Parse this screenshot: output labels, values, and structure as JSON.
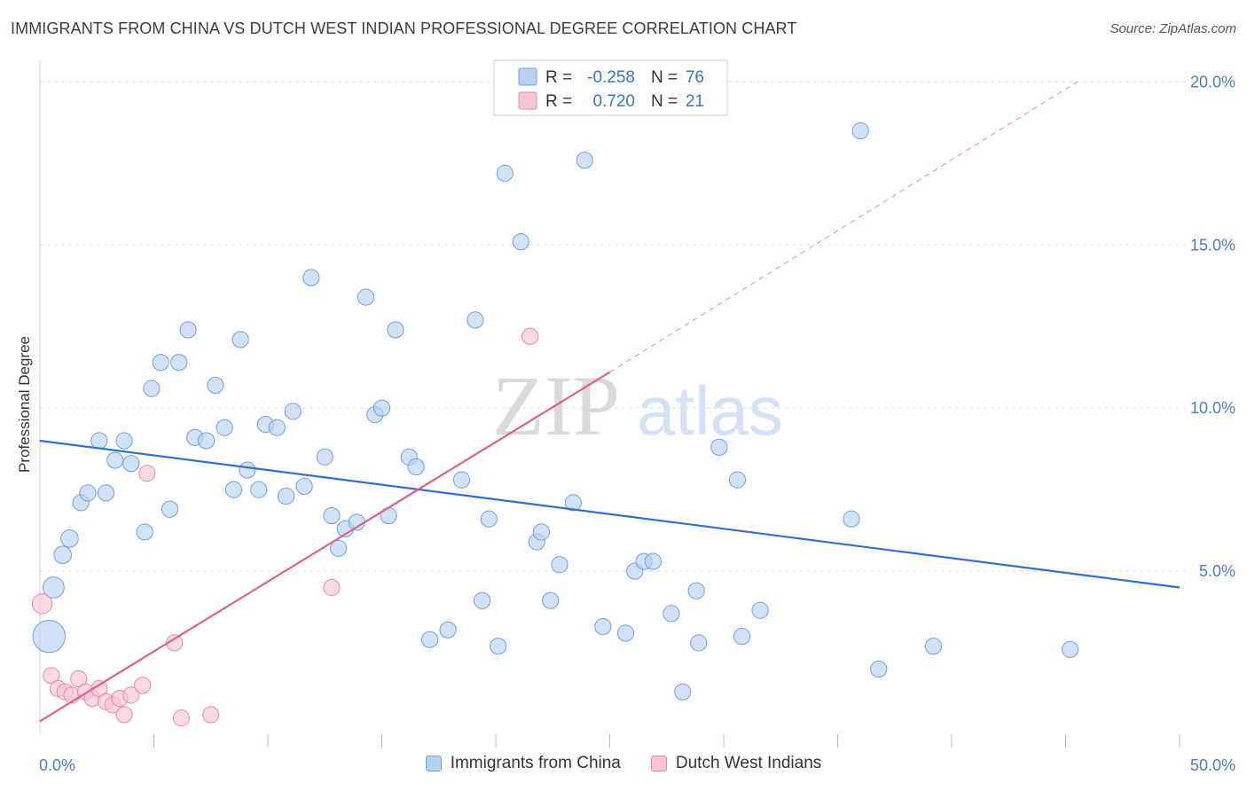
{
  "header": {
    "title": "IMMIGRANTS FROM CHINA VS DUTCH WEST INDIAN PROFESSIONAL DEGREE CORRELATION CHART",
    "source": "Source: ZipAtlas.com"
  },
  "watermark": {
    "zip": "ZIP",
    "atlas": "atlas"
  },
  "colors": {
    "blue_fill": "#b8d1f3",
    "blue_stroke": "#6f9fe0",
    "blue_line": "#2f6fd1",
    "pink_fill": "#f7c4d3",
    "pink_stroke": "#e889a6",
    "pink_line": "#e0608c",
    "grid": "#dddddd",
    "tick_text": "#4a7cc9"
  },
  "legend": {
    "rows": [
      {
        "r_label": "R =",
        "r_value": "-0.258",
        "n_label": "N =",
        "n_value": "76"
      },
      {
        "r_label": "R =",
        "r_value": "0.720",
        "n_label": "N =",
        "n_value": "21"
      }
    ]
  },
  "bottom_legend": [
    {
      "label": "Immigrants from China"
    },
    {
      "label": "Dutch West Indians"
    }
  ],
  "chart_data": {
    "type": "scatter",
    "title": "IMMIGRANTS FROM CHINA VS DUTCH WEST INDIAN PROFESSIONAL DEGREE CORRELATION CHART",
    "xlabel": "",
    "ylabel": "Professional Degree",
    "xlim": [
      0,
      50
    ],
    "ylim": [
      0,
      20.5
    ],
    "x_tick_labels": [
      "0.0%",
      "50.0%"
    ],
    "y_ticks": [
      5,
      10,
      15,
      20
    ],
    "y_tick_labels": [
      "5.0%",
      "10.0%",
      "15.0%",
      "20.0%"
    ],
    "grid": true,
    "legend_position": "top-center",
    "series": [
      {
        "name": "Immigrants from China",
        "r": -0.258,
        "n": 76,
        "trend": {
          "x": [
            0,
            50
          ],
          "y": [
            9.0,
            4.5
          ],
          "dashed_after": null
        },
        "points": [
          {
            "x": 0.4,
            "y": 3.0,
            "s": 2.6
          },
          {
            "x": 0.6,
            "y": 4.5,
            "s": 1.7
          },
          {
            "x": 1.0,
            "y": 5.5,
            "s": 1.4
          },
          {
            "x": 1.3,
            "y": 6.0,
            "s": 1.4
          },
          {
            "x": 1.8,
            "y": 7.1,
            "s": 1.3
          },
          {
            "x": 2.1,
            "y": 7.4,
            "s": 1.3
          },
          {
            "x": 2.6,
            "y": 9.0,
            "s": 1.3
          },
          {
            "x": 2.9,
            "y": 7.4,
            "s": 1.3
          },
          {
            "x": 3.3,
            "y": 8.4,
            "s": 1.3
          },
          {
            "x": 3.7,
            "y": 9.0,
            "s": 1.3
          },
          {
            "x": 4.0,
            "y": 8.3,
            "s": 1.3
          },
          {
            "x": 4.6,
            "y": 6.2,
            "s": 1.3
          },
          {
            "x": 4.9,
            "y": 10.6,
            "s": 1.3
          },
          {
            "x": 5.3,
            "y": 11.4,
            "s": 1.3
          },
          {
            "x": 5.7,
            "y": 6.9,
            "s": 1.3
          },
          {
            "x": 6.1,
            "y": 11.4,
            "s": 1.3
          },
          {
            "x": 6.5,
            "y": 12.4,
            "s": 1.3
          },
          {
            "x": 6.8,
            "y": 9.1,
            "s": 1.3
          },
          {
            "x": 7.3,
            "y": 9.0,
            "s": 1.3
          },
          {
            "x": 7.7,
            "y": 10.7,
            "s": 1.3
          },
          {
            "x": 8.1,
            "y": 9.4,
            "s": 1.3
          },
          {
            "x": 8.5,
            "y": 7.5,
            "s": 1.3
          },
          {
            "x": 8.8,
            "y": 12.1,
            "s": 1.3
          },
          {
            "x": 9.1,
            "y": 8.1,
            "s": 1.3
          },
          {
            "x": 9.6,
            "y": 7.5,
            "s": 1.3
          },
          {
            "x": 9.9,
            "y": 9.5,
            "s": 1.3
          },
          {
            "x": 10.4,
            "y": 9.4,
            "s": 1.3
          },
          {
            "x": 10.8,
            "y": 7.3,
            "s": 1.3
          },
          {
            "x": 11.1,
            "y": 9.9,
            "s": 1.3
          },
          {
            "x": 11.6,
            "y": 7.6,
            "s": 1.3
          },
          {
            "x": 11.9,
            "y": 14.0,
            "s": 1.3
          },
          {
            "x": 12.5,
            "y": 8.5,
            "s": 1.3
          },
          {
            "x": 12.8,
            "y": 6.7,
            "s": 1.3
          },
          {
            "x": 13.1,
            "y": 5.7,
            "s": 1.3
          },
          {
            "x": 13.4,
            "y": 6.3,
            "s": 1.3
          },
          {
            "x": 13.9,
            "y": 6.5,
            "s": 1.3
          },
          {
            "x": 14.3,
            "y": 13.4,
            "s": 1.3
          },
          {
            "x": 14.7,
            "y": 9.8,
            "s": 1.3
          },
          {
            "x": 15.0,
            "y": 10.0,
            "s": 1.3
          },
          {
            "x": 15.3,
            "y": 6.7,
            "s": 1.3
          },
          {
            "x": 15.6,
            "y": 12.4,
            "s": 1.3
          },
          {
            "x": 16.2,
            "y": 8.5,
            "s": 1.3
          },
          {
            "x": 16.5,
            "y": 8.2,
            "s": 1.3
          },
          {
            "x": 17.1,
            "y": 2.9,
            "s": 1.3
          },
          {
            "x": 17.9,
            "y": 3.2,
            "s": 1.3
          },
          {
            "x": 18.5,
            "y": 7.8,
            "s": 1.3
          },
          {
            "x": 19.1,
            "y": 12.7,
            "s": 1.3
          },
          {
            "x": 19.4,
            "y": 4.1,
            "s": 1.3
          },
          {
            "x": 19.7,
            "y": 6.6,
            "s": 1.3
          },
          {
            "x": 20.1,
            "y": 2.7,
            "s": 1.3
          },
          {
            "x": 20.4,
            "y": 17.2,
            "s": 1.3
          },
          {
            "x": 21.1,
            "y": 15.1,
            "s": 1.3
          },
          {
            "x": 21.8,
            "y": 5.9,
            "s": 1.3
          },
          {
            "x": 22.0,
            "y": 6.2,
            "s": 1.3
          },
          {
            "x": 22.4,
            "y": 4.1,
            "s": 1.3
          },
          {
            "x": 22.8,
            "y": 5.2,
            "s": 1.3
          },
          {
            "x": 23.4,
            "y": 7.1,
            "s": 1.3
          },
          {
            "x": 23.9,
            "y": 17.6,
            "s": 1.3
          },
          {
            "x": 24.7,
            "y": 3.3,
            "s": 1.3
          },
          {
            "x": 25.7,
            "y": 3.1,
            "s": 1.3
          },
          {
            "x": 26.1,
            "y": 5.0,
            "s": 1.3
          },
          {
            "x": 26.5,
            "y": 5.3,
            "s": 1.3
          },
          {
            "x": 26.9,
            "y": 5.3,
            "s": 1.3
          },
          {
            "x": 27.7,
            "y": 3.7,
            "s": 1.3
          },
          {
            "x": 28.2,
            "y": 1.3,
            "s": 1.3
          },
          {
            "x": 28.8,
            "y": 4.4,
            "s": 1.3
          },
          {
            "x": 28.9,
            "y": 2.8,
            "s": 1.3
          },
          {
            "x": 29.8,
            "y": 8.8,
            "s": 1.3
          },
          {
            "x": 30.6,
            "y": 7.8,
            "s": 1.3
          },
          {
            "x": 30.8,
            "y": 3.0,
            "s": 1.3
          },
          {
            "x": 31.6,
            "y": 3.8,
            "s": 1.3
          },
          {
            "x": 35.6,
            "y": 6.6,
            "s": 1.3
          },
          {
            "x": 36.0,
            "y": 18.5,
            "s": 1.3
          },
          {
            "x": 36.8,
            "y": 2.0,
            "s": 1.3
          },
          {
            "x": 39.2,
            "y": 2.7,
            "s": 1.3
          },
          {
            "x": 45.2,
            "y": 2.6,
            "s": 1.3
          }
        ]
      },
      {
        "name": "Dutch West Indians",
        "r": 0.72,
        "n": 21,
        "trend": {
          "x": [
            0,
            25
          ],
          "y": [
            0.4,
            11.1
          ],
          "dashed_to": {
            "x": 45.5,
            "y": 20.0
          }
        },
        "points": [
          {
            "x": 0.1,
            "y": 4.0,
            "s": 1.6
          },
          {
            "x": 0.5,
            "y": 1.8,
            "s": 1.3
          },
          {
            "x": 0.8,
            "y": 1.4,
            "s": 1.3
          },
          {
            "x": 1.1,
            "y": 1.3,
            "s": 1.3
          },
          {
            "x": 1.4,
            "y": 1.2,
            "s": 1.3
          },
          {
            "x": 1.7,
            "y": 1.7,
            "s": 1.3
          },
          {
            "x": 2.0,
            "y": 1.3,
            "s": 1.3
          },
          {
            "x": 2.3,
            "y": 1.1,
            "s": 1.3
          },
          {
            "x": 2.6,
            "y": 1.4,
            "s": 1.3
          },
          {
            "x": 2.9,
            "y": 1.0,
            "s": 1.3
          },
          {
            "x": 3.2,
            "y": 0.9,
            "s": 1.3
          },
          {
            "x": 3.5,
            "y": 1.1,
            "s": 1.3
          },
          {
            "x": 3.7,
            "y": 0.6,
            "s": 1.3
          },
          {
            "x": 4.0,
            "y": 1.2,
            "s": 1.3
          },
          {
            "x": 4.5,
            "y": 1.5,
            "s": 1.3
          },
          {
            "x": 4.7,
            "y": 8.0,
            "s": 1.3
          },
          {
            "x": 5.9,
            "y": 2.8,
            "s": 1.3
          },
          {
            "x": 6.2,
            "y": 0.5,
            "s": 1.3
          },
          {
            "x": 7.5,
            "y": 0.6,
            "s": 1.3
          },
          {
            "x": 12.8,
            "y": 4.5,
            "s": 1.3
          },
          {
            "x": 21.5,
            "y": 12.2,
            "s": 1.3
          }
        ]
      }
    ]
  }
}
